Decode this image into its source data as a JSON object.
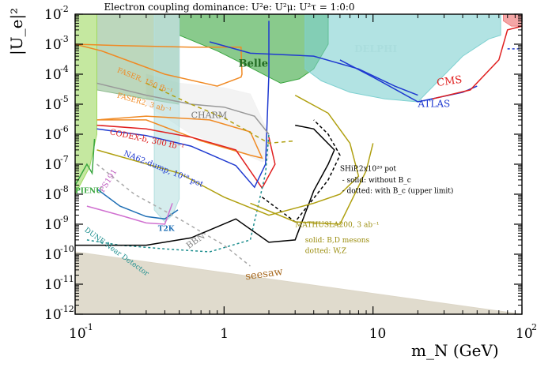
{
  "chart_data": {
    "type": "area",
    "title": "Electron coupling dominance: U²e: U²μ: U²τ = 1:0:0",
    "xlabel": "m_N (GeV)",
    "ylabel": "|U_e|²",
    "xscale": "log",
    "yscale": "log",
    "xlim": [
      0.1,
      100
    ],
    "ylim": [
      1e-12,
      0.01
    ],
    "x_ticks": [
      {
        "value": 0.1,
        "base": "10",
        "exp": "-1"
      },
      {
        "value": 1,
        "base": "1",
        "exp": ""
      },
      {
        "value": 10,
        "base": "10",
        "exp": ""
      },
      {
        "value": 100,
        "base": "10",
        "exp": "2"
      }
    ],
    "y_ticks": [
      {
        "value": 1e-12,
        "base": "10",
        "exp": "-12"
      },
      {
        "value": 1e-11,
        "base": "10",
        "exp": "-11"
      },
      {
        "value": 1e-10,
        "base": "10",
        "exp": "-10"
      },
      {
        "value": 1e-09,
        "base": "10",
        "exp": "-9"
      },
      {
        "value": 1e-08,
        "base": "10",
        "exp": "-8"
      },
      {
        "value": 1e-07,
        "base": "10",
        "exp": "-7"
      },
      {
        "value": 1e-06,
        "base": "10",
        "exp": "-6"
      },
      {
        "value": 1e-05,
        "base": "10",
        "exp": "-5"
      },
      {
        "value": 0.0001,
        "base": "10",
        "exp": "-4"
      },
      {
        "value": 0.001,
        "base": "10",
        "exp": "-3"
      },
      {
        "value": 0.01,
        "base": "10",
        "exp": "-2"
      }
    ],
    "regions": [
      {
        "label": "seesaw",
        "color": "#ddd7c8",
        "opacity": 0.9,
        "points": [
          [
            0.1,
            1.2e-10
          ],
          [
            100,
            1e-12
          ],
          [
            0.1,
            1e-12
          ]
        ]
      },
      {
        "label": "",
        "color": "#f2f2f2",
        "opacity": 0.9,
        "points": [
          [
            0.3,
            0.0001
          ],
          [
            0.5,
            5e-05
          ],
          [
            1,
            3.5e-05
          ],
          [
            1.5,
            2.2e-05
          ],
          [
            2.0,
            1e-06
          ],
          [
            2.0,
            1.5e-07
          ],
          [
            1.8,
            1.2e-07
          ],
          [
            1.2,
            3e-07
          ],
          [
            0.6,
            1e-06
          ],
          [
            0.3,
            1e-05
          ]
        ]
      },
      {
        "label": "Belle",
        "color": "#3aa640",
        "opacity": 0.6,
        "points": [
          [
            0.5,
            0.01
          ],
          [
            5,
            0.01
          ],
          [
            5,
            0.001
          ],
          [
            4,
            0.00015
          ],
          [
            3.2,
            7e-05
          ],
          [
            2.4,
            5e-05
          ],
          [
            1.4,
            0.0002
          ],
          [
            0.9,
            0.0006
          ],
          [
            0.5,
            0.002
          ]
        ]
      },
      {
        "label": "DELPHI",
        "color": "#7fd1d1",
        "opacity": 0.6,
        "points": [
          [
            3.5,
            0.01
          ],
          [
            72,
            0.01
          ],
          [
            72,
            0.002
          ],
          [
            60,
            0.0015
          ],
          [
            40,
            0.0004
          ],
          [
            20,
            1.2e-05
          ],
          [
            12,
            1.5e-05
          ],
          [
            7,
            2.5e-05
          ],
          [
            4.5,
            6e-05
          ],
          [
            3.5,
            0.00015
          ]
        ]
      },
      {
        "label": "",
        "color": "#8fbc8f",
        "opacity": 0.6,
        "points": [
          [
            0.14,
            0.01
          ],
          [
            0.5,
            0.01
          ],
          [
            0.5,
            1e-05
          ],
          [
            0.3,
            1.5e-05
          ],
          [
            0.14,
            3e-05
          ]
        ]
      },
      {
        "label": "",
        "color": "#b2dede",
        "opacity": 0.55,
        "points": [
          [
            0.34,
            0.01
          ],
          [
            0.5,
            0.01
          ],
          [
            0.5,
            7e-09
          ],
          [
            0.45,
            2e-09
          ],
          [
            0.4,
            1.2e-09
          ],
          [
            0.34,
            3e-09
          ]
        ]
      },
      {
        "label": "",
        "color": "#9fd860",
        "opacity": 0.6,
        "points": [
          [
            0.1,
            0.01
          ],
          [
            0.14,
            0.01
          ],
          [
            0.14,
            1e-06
          ],
          [
            0.125,
            8e-08
          ],
          [
            0.1,
            1e-08
          ]
        ]
      },
      {
        "label": "",
        "color": "#f08080",
        "opacity": 0.7,
        "points": [
          [
            75,
            0.01
          ],
          [
            100,
            0.01
          ],
          [
            100,
            0.004
          ],
          [
            85,
            0.004
          ],
          [
            75,
            0.006
          ]
        ]
      }
    ],
    "curves": [
      {
        "label": "FASER, 150 fb⁻¹",
        "color": "#f08a24",
        "dash": "",
        "points": [
          [
            0.1,
            0.001
          ],
          [
            0.2,
            0.0009
          ],
          [
            0.6,
            0.0008
          ],
          [
            1,
            0.0008
          ],
          [
            1.3,
            0.0008
          ],
          [
            1.32,
            0.0001
          ],
          [
            1.3,
            8e-05
          ],
          [
            0.9,
            4e-05
          ],
          [
            0.4,
            0.0001
          ],
          [
            0.15,
            0.0006
          ],
          [
            0.1,
            0.001
          ]
        ]
      },
      {
        "label": "FASER2, 3 ab⁻¹",
        "color": "#f08a24",
        "dash": "",
        "points": [
          [
            0.14,
            3e-06
          ],
          [
            0.3,
            4e-06
          ],
          [
            0.8,
            3e-06
          ],
          [
            1.5,
            1.2e-06
          ],
          [
            1.8,
            1.6e-07
          ],
          [
            1.5,
            2e-07
          ],
          [
            0.7,
            6e-07
          ],
          [
            0.3,
            3e-06
          ],
          [
            0.14,
            3e-06
          ]
        ]
      },
      {
        "label": "CODEX-b, 300 fb⁻¹",
        "color": "#e02020",
        "dash": "",
        "points": [
          [
            0.14,
            2e-06
          ],
          [
            0.3,
            1.5e-06
          ],
          [
            0.6,
            8e-07
          ],
          [
            1.2,
            3e-07
          ],
          [
            1.8,
            1.6e-08
          ],
          [
            2.2,
            1e-07
          ],
          [
            2.0,
            8e-07
          ]
        ]
      },
      {
        "label": "NA62-dump, 10¹⁸ pot",
        "color": "#1f3ad0",
        "dash": "",
        "points": [
          [
            0.14,
            1.5e-06
          ],
          [
            0.3,
            9e-07
          ],
          [
            0.6,
            4e-07
          ],
          [
            1.2,
            9e-08
          ],
          [
            1.6,
            1.7e-08
          ],
          [
            1.9,
            1e-07
          ],
          [
            2.0,
            0.0001
          ],
          [
            2.0,
            0.006
          ]
        ]
      },
      {
        "label": "NA62-dump, 10¹⁸ pot",
        "color": "#1f3ad0",
        "dash": "",
        "points": [
          [
            0.8,
            0.0012
          ],
          [
            1.5,
            0.0005
          ],
          [
            4,
            0.0004
          ],
          [
            8,
            0.00015
          ],
          [
            14,
            4e-05
          ],
          [
            20,
            2e-05
          ]
        ]
      },
      {
        "label": "ATLAS",
        "color": "#1f3ad0",
        "dash": "",
        "points": [
          [
            6,
            0.0003
          ],
          [
            10,
            8e-05
          ],
          [
            20,
            1.2e-05
          ],
          [
            40,
            2.5e-05
          ],
          [
            50,
            4e-05
          ]
        ]
      },
      {
        "label": "",
        "color": "#1f3ad0",
        "dash": "3 3",
        "points": [
          [
            80,
            0.0007
          ],
          [
            100,
            0.0007
          ]
        ]
      },
      {
        "label": "CMS",
        "color": "#e02020",
        "dash": "",
        "points": [
          [
            25,
            1.5e-05
          ],
          [
            45,
            3e-05
          ],
          [
            70,
            0.0003
          ],
          [
            80,
            0.003
          ],
          [
            100,
            0.004
          ]
        ]
      },
      {
        "label": "CHARM",
        "color": "#999999",
        "dash": "",
        "points": [
          [
            0.14,
            5e-05
          ],
          [
            0.3,
            2e-05
          ],
          [
            0.6,
            1e-05
          ],
          [
            1.0,
            8e-06
          ],
          [
            1.6,
            4e-06
          ],
          [
            2.0,
            1e-06
          ]
        ]
      },
      {
        "label": "T2K",
        "color": "#1f6fb5",
        "dash": "",
        "points": [
          [
            0.14,
            1.5e-08
          ],
          [
            0.2,
            4e-09
          ],
          [
            0.3,
            1.8e-09
          ],
          [
            0.4,
            1.5e-09
          ],
          [
            0.49,
            3e-09
          ]
        ]
      },
      {
        "label": "PIENU",
        "color": "#3aa640",
        "dash": "",
        "points": [
          [
            0.1,
            2e-08
          ],
          [
            0.12,
            1e-07
          ],
          [
            0.13,
            5e-08
          ],
          [
            0.135,
            7e-07
          ]
        ]
      },
      {
        "label": "PS191",
        "color": "#d070d0",
        "dash": "",
        "points": [
          [
            0.12,
            4e-09
          ],
          [
            0.2,
            2e-09
          ],
          [
            0.3,
            1.1e-09
          ],
          [
            0.4,
            1e-09
          ],
          [
            0.45,
            5e-09
          ]
        ]
      },
      {
        "label": "DUNE Near Detector",
        "color": "#1f8f8f",
        "dash": "3 3",
        "points": [
          [
            0.12,
            3e-10
          ],
          [
            0.2,
            2e-10
          ],
          [
            0.4,
            1.5e-10
          ],
          [
            0.8,
            1.2e-10
          ],
          [
            1.5,
            3e-10
          ],
          [
            1.9,
            5e-08
          ],
          [
            2.0,
            1e-06
          ]
        ]
      },
      {
        "label": "BBN",
        "color": "#aaaaaa",
        "dash": "4 4",
        "points": [
          [
            0.14,
            1e-07
          ],
          [
            0.25,
            1e-08
          ],
          [
            0.5,
            1.5e-09
          ],
          [
            1,
            2e-10
          ],
          [
            1.5,
            4e-11
          ]
        ]
      },
      {
        "label": "SHiP, 2x10²⁰ pot",
        "color": "#000000",
        "dash": "",
        "points": [
          [
            0.1,
            2e-10
          ],
          [
            0.3,
            2e-10
          ],
          [
            0.6,
            3.5e-10
          ],
          [
            1.2,
            1.5e-09
          ],
          [
            2,
            2.5e-10
          ],
          [
            3,
            3e-10
          ],
          [
            4,
            1.3e-08
          ],
          [
            5,
            1e-07
          ],
          [
            5.5,
            3e-07
          ],
          [
            4,
            1.5e-06
          ],
          [
            3,
            2e-06
          ]
        ]
      },
      {
        "label": "SHiP, 2x10²⁰ pot",
        "color": "#000000",
        "dash": "4 3",
        "points": [
          [
            1.8,
            8e-09
          ],
          [
            3,
            1.2e-09
          ],
          [
            5,
            3e-08
          ],
          [
            6,
            2e-07
          ],
          [
            5,
            1e-06
          ],
          [
            4,
            3e-06
          ]
        ]
      },
      {
        "label": "MATHUSLA200, 3 ab⁻¹",
        "color": "#b0a010",
        "dash": "",
        "points": [
          [
            0.14,
            3e-07
          ],
          [
            0.5,
            5e-08
          ],
          [
            1,
            8e-09
          ],
          [
            2,
            2e-09
          ],
          [
            4,
            5e-09
          ],
          [
            6,
            1e-08
          ],
          [
            8,
            4e-08
          ],
          [
            7,
            5e-07
          ],
          [
            5,
            5e-06
          ],
          [
            3,
            2e-05
          ]
        ]
      },
      {
        "label": "MATHUSLA200, 3 ab⁻¹",
        "color": "#b0a010",
        "dash": "",
        "points": [
          [
            1.5,
            5e-09
          ],
          [
            3,
            1.2e-09
          ],
          [
            6,
            1e-09
          ],
          [
            9,
            6e-08
          ],
          [
            10,
            5e-07
          ]
        ]
      },
      {
        "label": "MATHUSLA200, 3 ab⁻¹",
        "color": "#b0a010",
        "dash": "5 4",
        "points": [
          [
            0.3,
            5e-05
          ],
          [
            0.6,
            1e-05
          ],
          [
            1,
            3.5e-06
          ],
          [
            2,
            5e-07
          ],
          [
            3,
            6e-07
          ]
        ]
      }
    ],
    "annotations": [
      {
        "text": "DELPHI",
        "x": 7.5,
        "y": 0.00055,
        "color": "#aadddd",
        "size": 12,
        "rotate": 0,
        "bold": true
      },
      {
        "text": "Belle",
        "x": 1.25,
        "y": 0.00018,
        "color": "#226b22",
        "size": 13,
        "rotate": 0,
        "bold": true
      },
      {
        "text": "CMS",
        "x": 27,
        "y": 4e-05,
        "color": "#e02020",
        "size": 13,
        "rotate": -8,
        "bold": false
      },
      {
        "text": "ATLAS",
        "x": 20,
        "y": 8e-06,
        "color": "#1f3ad0",
        "size": 12,
        "rotate": 0,
        "bold": false
      },
      {
        "text": "FASER, 150 fb⁻¹",
        "x": 0.19,
        "y": 0.00012,
        "color": "#f08a24",
        "size": 9,
        "rotate": 22,
        "bold": false
      },
      {
        "text": "FASER2, 3 ab⁻¹",
        "x": 0.19,
        "y": 1.7e-05,
        "color": "#f08a24",
        "size": 9,
        "rotate": 16,
        "bold": false
      },
      {
        "text": "CHARM",
        "x": 0.6,
        "y": 3.5e-06,
        "color": "#777777",
        "size": 11,
        "rotate": 0,
        "bold": false
      },
      {
        "text": "CODEX-b, 300 fb⁻¹",
        "x": 0.17,
        "y": 1e-06,
        "color": "#e02020",
        "size": 10,
        "rotate": 12,
        "bold": false
      },
      {
        "text": "NA62-dump, 10¹⁸ pot",
        "x": 0.21,
        "y": 2e-07,
        "color": "#1f3ad0",
        "size": 10,
        "rotate": 22,
        "bold": false
      },
      {
        "text": "SHiP,2x10²⁰ pot",
        "x": 6,
        "y": 6e-08,
        "color": "#000000",
        "size": 9,
        "rotate": 0,
        "bold": false
      },
      {
        "text": "- solid:  without B_c",
        "x": 6.2,
        "y": 2.5e-08,
        "color": "#000000",
        "size": 9,
        "rotate": 0,
        "bold": false
      },
      {
        "text": "- dotted: with B_c (upper limit)",
        "x": 6.2,
        "y": 1.1e-08,
        "color": "#000000",
        "size": 9,
        "rotate": 0,
        "bold": false
      },
      {
        "text": "MATHUSLA200, 3 ab⁻¹",
        "x": 3.0,
        "y": 8e-10,
        "color": "#9a8c0c",
        "size": 9,
        "rotate": 0,
        "bold": false
      },
      {
        "text": "solid: B,D mesons",
        "x": 3.5,
        "y": 2.5e-10,
        "color": "#9a8c0c",
        "size": 9,
        "rotate": 0,
        "bold": false
      },
      {
        "text": "dotted: W,Z",
        "x": 3.5,
        "y": 1.1e-10,
        "color": "#9a8c0c",
        "size": 9,
        "rotate": 0,
        "bold": false
      },
      {
        "text": "T2K",
        "x": 0.36,
        "y": 6e-10,
        "color": "#1f6fb5",
        "size": 9,
        "rotate": 0,
        "bold": true
      },
      {
        "text": "PIENU",
        "x": 0.1,
        "y": 1.1e-08,
        "color": "#3aa640",
        "size": 9,
        "rotate": 0,
        "bold": true
      },
      {
        "text": "PS191",
        "x": 0.155,
        "y": 1.1e-08,
        "color": "#c060c0",
        "size": 10,
        "rotate": -58,
        "bold": false
      },
      {
        "text": "BBN",
        "x": 0.58,
        "y": 1.5e-10,
        "color": "#888888",
        "size": 11,
        "rotate": -35,
        "bold": false
      },
      {
        "text": "DUNE Near Detector",
        "x": 0.115,
        "y": 6e-10,
        "color": "#1f8f8f",
        "size": 9,
        "rotate": 36,
        "bold": false
      },
      {
        "text": "seesaw",
        "x": 1.4,
        "y": 1.4e-11,
        "color": "#a86a20",
        "size": 13,
        "rotate": -8,
        "bold": false
      }
    ]
  }
}
